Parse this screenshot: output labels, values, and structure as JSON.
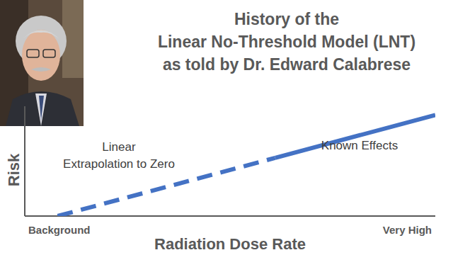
{
  "chart_data": {
    "type": "line",
    "title": "History of the\nLinear No-Threshold Model (LNT)\nas told by Dr. Edward Calabrese",
    "x_label": "Radiation Dose Rate",
    "y_label": "Risk",
    "annotations": [
      "Linear\nExtrapolation to Zero",
      "Known Effects"
    ],
    "x": [
      8,
      61,
      100
    ],
    "series": [
      {
        "values": [
          0,
          53,
          null
        ],
        "color": "#4472c4",
        "line_style": "dashed"
      },
      {
        "values": [
          null,
          53,
          92
        ],
        "color": "#4472c4",
        "line_style": "solid"
      }
    ],
    "xlim": [
      0,
      100
    ],
    "ylim": [
      0,
      100
    ],
    "xticks": [
      {
        "value": 0,
        "label": "Background"
      },
      {
        "value": 100,
        "label": "Very High"
      }
    ],
    "yticks": [],
    "grid": false,
    "tick_labels": "x"
  }
}
